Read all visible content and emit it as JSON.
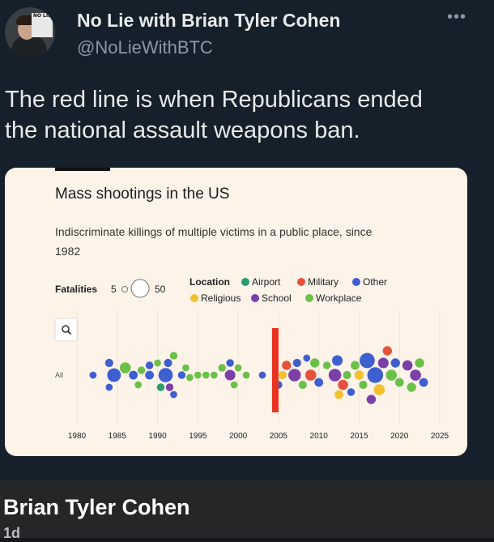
{
  "post": {
    "author_name": "No Lie with Brian Tyler Cohen",
    "handle": "@NoLieWithBTC",
    "more_icon": "ellipsis-icon",
    "text_line1": "The red line is when Republicans ended",
    "text_line2": "the national assault weapons ban.",
    "avatar_tag": "NO LIE"
  },
  "chart_data": {
    "type": "scatter",
    "title": "Mass shootings in the US",
    "subtitle_line1": "Indiscriminate killings of multiple victims in a public place, since",
    "subtitle_line2": "1982",
    "size_legend": {
      "label": "Fatalities",
      "min": "5",
      "max": "50"
    },
    "color_legend_title": "Location",
    "locations": [
      {
        "name": "Airport",
        "color": "#2a9d6e"
      },
      {
        "name": "Military",
        "color": "#e5533c"
      },
      {
        "name": "Other",
        "color": "#3e5fd0"
      },
      {
        "name": "Religious",
        "color": "#f2c12e"
      },
      {
        "name": "School",
        "color": "#7b3fa8"
      },
      {
        "name": "Workplace",
        "color": "#6cc04a"
      }
    ],
    "row_label": "All",
    "x_ticks": [
      "1980",
      "1985",
      "1990",
      "1995",
      "2000",
      "2005",
      "2010",
      "2015",
      "2020",
      "2025"
    ],
    "xlim": [
      1978,
      2026
    ],
    "marker_year": 2004,
    "marker_color": "#e8331f",
    "search_icon": "magnifier-icon",
    "points": [
      {
        "x": 1982,
        "s": 6,
        "c": "Other"
      },
      {
        "x": 1984,
        "s": 6,
        "c": "Other"
      },
      {
        "x": 1984,
        "s": 8,
        "c": "Other"
      },
      {
        "x": 1984.6,
        "s": 21,
        "c": "Other"
      },
      {
        "x": 1986,
        "s": 14,
        "c": "Workplace"
      },
      {
        "x": 1987,
        "s": 9,
        "c": "Other"
      },
      {
        "x": 1987.6,
        "s": 6,
        "c": "Workplace"
      },
      {
        "x": 1988,
        "s": 7,
        "c": "Workplace"
      },
      {
        "x": 1989,
        "s": 7,
        "c": "Other"
      },
      {
        "x": 1989,
        "s": 9,
        "c": "Other"
      },
      {
        "x": 1990,
        "s": 6,
        "c": "Workplace"
      },
      {
        "x": 1990.4,
        "s": 7,
        "c": "Airport"
      },
      {
        "x": 1991,
        "s": 23,
        "c": "Other"
      },
      {
        "x": 1991.3,
        "s": 8,
        "c": "Other"
      },
      {
        "x": 1991.5,
        "s": 7,
        "c": "School"
      },
      {
        "x": 1992,
        "s": 6,
        "c": "Other"
      },
      {
        "x": 1992,
        "s": 7,
        "c": "Workplace"
      },
      {
        "x": 1993,
        "s": 7,
        "c": "Other"
      },
      {
        "x": 1993.5,
        "s": 6,
        "c": "Workplace"
      },
      {
        "x": 1994,
        "s": 6,
        "c": "Workplace"
      },
      {
        "x": 1995,
        "s": 6,
        "c": "Workplace"
      },
      {
        "x": 1996,
        "s": 6,
        "c": "Workplace"
      },
      {
        "x": 1997,
        "s": 6,
        "c": "Workplace"
      },
      {
        "x": 1998,
        "s": 7,
        "c": "Workplace"
      },
      {
        "x": 1999,
        "s": 13,
        "c": "School"
      },
      {
        "x": 1999,
        "s": 7,
        "c": "Other"
      },
      {
        "x": 1999.5,
        "s": 6,
        "c": "Workplace"
      },
      {
        "x": 2000,
        "s": 6,
        "c": "Workplace"
      },
      {
        "x": 2001,
        "s": 6,
        "c": "Workplace"
      },
      {
        "x": 2003,
        "s": 6,
        "c": "Other"
      },
      {
        "x": 2005,
        "s": 7,
        "c": "Other"
      },
      {
        "x": 2005.5,
        "s": 8,
        "c": "Religious"
      },
      {
        "x": 2006,
        "s": 10,
        "c": "Military"
      },
      {
        "x": 2007,
        "s": 18,
        "c": "School"
      },
      {
        "x": 2007.3,
        "s": 8,
        "c": "Other"
      },
      {
        "x": 2008,
        "s": 8,
        "c": "Workplace"
      },
      {
        "x": 2008.5,
        "s": 6,
        "c": "Other"
      },
      {
        "x": 2009,
        "s": 14,
        "c": "Military"
      },
      {
        "x": 2009.5,
        "s": 10,
        "c": "Workplace"
      },
      {
        "x": 2010,
        "s": 9,
        "c": "Other"
      },
      {
        "x": 2011,
        "s": 7,
        "c": "Workplace"
      },
      {
        "x": 2012,
        "s": 18,
        "c": "School"
      },
      {
        "x": 2012.3,
        "s": 13,
        "c": "Other"
      },
      {
        "x": 2012.5,
        "s": 9,
        "c": "Religious"
      },
      {
        "x": 2013,
        "s": 12,
        "c": "Military"
      },
      {
        "x": 2013.5,
        "s": 8,
        "c": "Workplace"
      },
      {
        "x": 2014,
        "s": 7,
        "c": "Other"
      },
      {
        "x": 2014.5,
        "s": 9,
        "c": "Workplace"
      },
      {
        "x": 2015,
        "s": 10,
        "c": "Religious"
      },
      {
        "x": 2015.5,
        "s": 8,
        "c": "Workplace"
      },
      {
        "x": 2016,
        "s": 26,
        "c": "Other"
      },
      {
        "x": 2016.5,
        "s": 10,
        "c": "School"
      },
      {
        "x": 2017,
        "s": 28,
        "c": "Other"
      },
      {
        "x": 2017.5,
        "s": 14,
        "c": "Religious"
      },
      {
        "x": 2018,
        "s": 13,
        "c": "School"
      },
      {
        "x": 2018.5,
        "s": 10,
        "c": "Military"
      },
      {
        "x": 2019,
        "s": 14,
        "c": "Workplace"
      },
      {
        "x": 2019.5,
        "s": 10,
        "c": "Other"
      },
      {
        "x": 2020,
        "s": 9,
        "c": "Workplace"
      },
      {
        "x": 2021,
        "s": 12,
        "c": "School"
      },
      {
        "x": 2021.5,
        "s": 10,
        "c": "Workplace"
      },
      {
        "x": 2022,
        "s": 14,
        "c": "School"
      },
      {
        "x": 2022.5,
        "s": 10,
        "c": "Workplace"
      },
      {
        "x": 2023,
        "s": 9,
        "c": "Other"
      }
    ]
  },
  "footer": {
    "display_name": "Brian Tyler Cohen",
    "meta": "1d"
  }
}
